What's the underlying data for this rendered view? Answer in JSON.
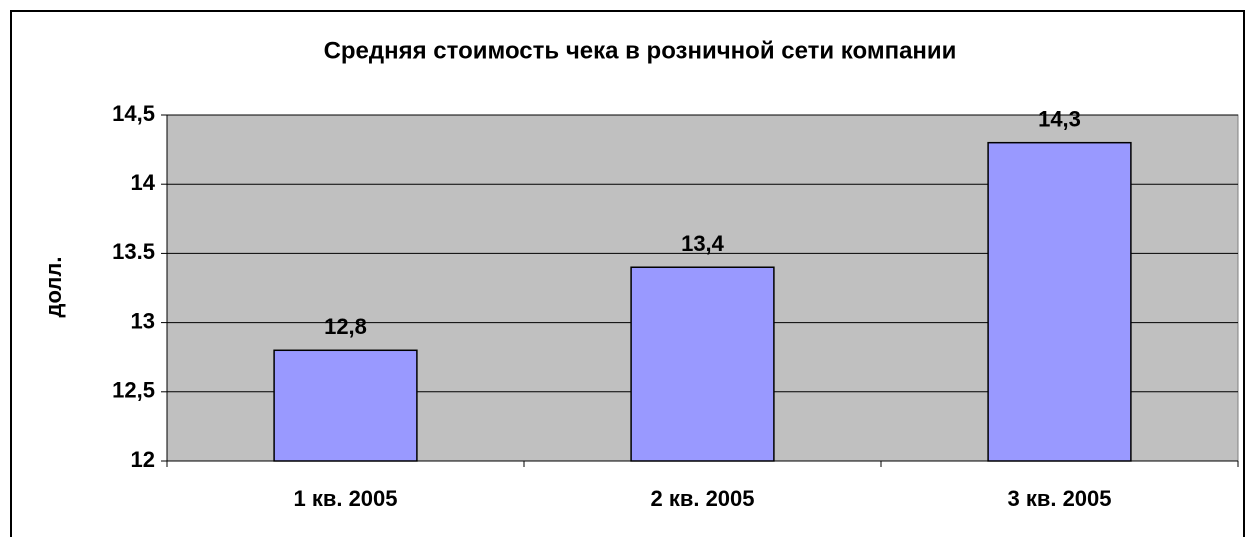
{
  "chart_data": {
    "type": "bar",
    "title": "Средняя стоимость чека в розничной сети компании",
    "ylabel": "долл.",
    "categories": [
      "1 кв. 2005",
      "2 кв. 2005",
      "3 кв. 2005"
    ],
    "values": [
      12.8,
      13.4,
      14.3
    ],
    "value_labels": [
      "12,8",
      "13,4",
      "14,3"
    ],
    "color": "#9999ff",
    "ylim": [
      12,
      14.5
    ],
    "yticks": [
      12,
      {
        "value": 12.5,
        "label": "12,5"
      },
      13,
      {
        "value": 13.5,
        "label": "13.5"
      },
      14,
      {
        "value": 14.5,
        "label": "14,5"
      }
    ],
    "grid": true
  }
}
